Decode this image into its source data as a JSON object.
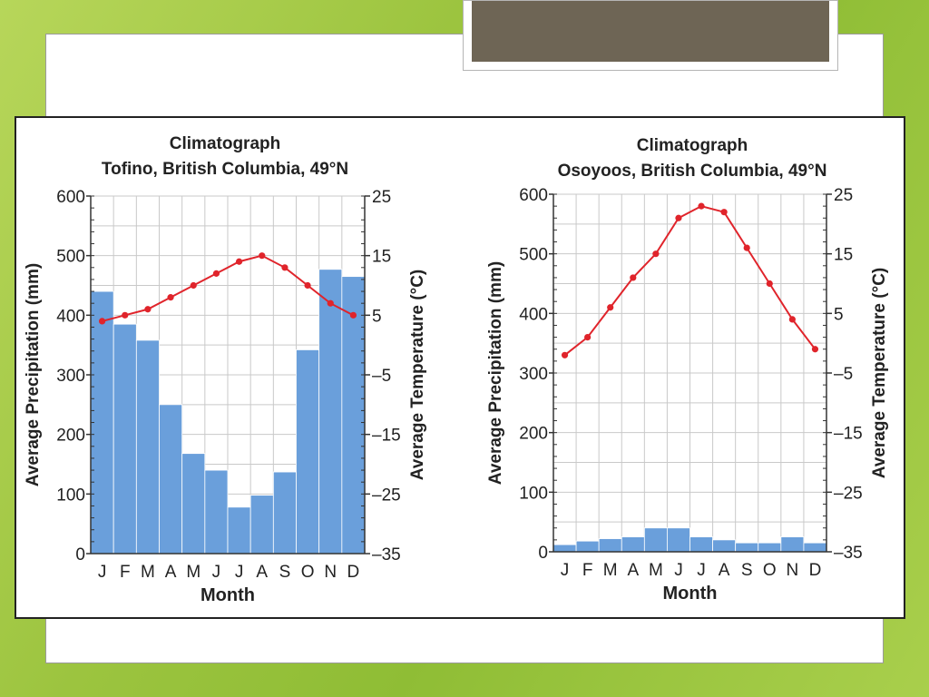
{
  "slide": {
    "background_color": "#9cc43f",
    "title_box_color": "#6e6555"
  },
  "chart_data": [
    {
      "type": "bar+line",
      "title": "Climatograph",
      "subtitle": "Tofino, British Columbia, 49°N",
      "xlabel": "Month",
      "ylabel": "Average Precipitation (mm)",
      "y2label": "Average Temperature (°C)",
      "categories": [
        "J",
        "F",
        "M",
        "A",
        "M",
        "J",
        "J",
        "A",
        "S",
        "O",
        "N",
        "D"
      ],
      "ylim": [
        0,
        600
      ],
      "y2lim": [
        -35,
        25
      ],
      "yticks": [
        0,
        100,
        200,
        300,
        400,
        500,
        600
      ],
      "y2ticks": [
        -35,
        -25,
        -15,
        -5,
        5,
        15,
        25
      ],
      "ytick_labels": [
        "0",
        "100",
        "200",
        "300",
        "400",
        "500",
        "600"
      ],
      "y2tick_labels": [
        "–35",
        "–25",
        "–15",
        "–5",
        "5",
        "15",
        "25"
      ],
      "grid": true,
      "series": [
        {
          "kind": "bar",
          "axis": "left",
          "color": "#6a9fdb",
          "values": [
            440,
            385,
            358,
            250,
            168,
            140,
            78,
            98,
            137,
            342,
            477,
            465
          ]
        },
        {
          "kind": "line",
          "axis": "right",
          "color": "#e0242b",
          "values": [
            4,
            5,
            6,
            8,
            10,
            12,
            14,
            15,
            13,
            10,
            7,
            5
          ]
        }
      ]
    },
    {
      "type": "bar+line",
      "title": "Climatograph",
      "subtitle": "Osoyoos, British Columbia, 49°N",
      "xlabel": "Month",
      "ylabel": "Average Precipitation (mm)",
      "y2label": "Average Temperature (°C)",
      "categories": [
        "J",
        "F",
        "M",
        "A",
        "M",
        "J",
        "J",
        "A",
        "S",
        "O",
        "N",
        "D"
      ],
      "ylim": [
        0,
        600
      ],
      "y2lim": [
        -35,
        25
      ],
      "yticks": [
        0,
        100,
        200,
        300,
        400,
        500,
        600
      ],
      "y2ticks": [
        -35,
        -25,
        -15,
        -5,
        5,
        15,
        25
      ],
      "ytick_labels": [
        "0",
        "100",
        "200",
        "300",
        "400",
        "500",
        "600"
      ],
      "y2tick_labels": [
        "–35",
        "–25",
        "–15",
        "–5",
        "5",
        "15",
        "25"
      ],
      "grid": true,
      "series": [
        {
          "kind": "bar",
          "axis": "left",
          "color": "#6a9fdb",
          "values": [
            12,
            18,
            22,
            25,
            40,
            40,
            25,
            20,
            15,
            15,
            25,
            15
          ]
        },
        {
          "kind": "line",
          "axis": "right",
          "color": "#e0242b",
          "values": [
            -2,
            1,
            6,
            11,
            15,
            21,
            23,
            22,
            16,
            10,
            4,
            -1
          ]
        }
      ]
    }
  ]
}
